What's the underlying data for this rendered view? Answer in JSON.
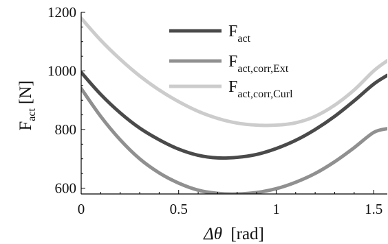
{
  "chart_data": {
    "type": "line",
    "xlabel": {
      "main": "Δθ",
      "unit": "[rad]"
    },
    "ylabel": {
      "main": "F",
      "sub": "act",
      "unit": "[N]"
    },
    "xlim": [
      0,
      1.57
    ],
    "ylim": [
      580,
      1200
    ],
    "x_ticks": [
      {
        "value": 0,
        "label": "0"
      },
      {
        "value": 0.5,
        "label": "0.5"
      },
      {
        "value": 1,
        "label": "1"
      },
      {
        "value": 1.5,
        "label": "1.5"
      }
    ],
    "y_ticks": [
      {
        "value": 600,
        "label": "600"
      },
      {
        "value": 800,
        "label": "800"
      },
      {
        "value": 1000,
        "label": "1000"
      },
      {
        "value": 1200,
        "label": "1200"
      }
    ],
    "legend_position": "top-center",
    "series": [
      {
        "name_main": "F",
        "name_sub": "act",
        "color": "#4a4a4a",
        "x": [
          0,
          0.1,
          0.2,
          0.3,
          0.4,
          0.5,
          0.6,
          0.7,
          0.8,
          0.9,
          1.0,
          1.1,
          1.2,
          1.3,
          1.4,
          1.5,
          1.57
        ],
        "y": [
          995,
          920,
          857,
          805,
          765,
          733,
          712,
          703,
          705,
          715,
          735,
          763,
          800,
          845,
          898,
          955,
          985
        ]
      },
      {
        "name_main": "F",
        "name_sub": "act,corr,Ext",
        "color": "#909090",
        "x": [
          0,
          0.1,
          0.2,
          0.3,
          0.4,
          0.5,
          0.6,
          0.7,
          0.8,
          0.9,
          1.0,
          1.1,
          1.2,
          1.3,
          1.4,
          1.5,
          1.57
        ],
        "y": [
          940,
          845,
          765,
          700,
          652,
          617,
          593,
          582,
          580,
          585,
          598,
          620,
          650,
          690,
          738,
          790,
          803
        ]
      },
      {
        "name_main": "F",
        "name_sub": "act,corr,Curl",
        "color": "#cccccc",
        "x": [
          0,
          0.1,
          0.2,
          0.3,
          0.4,
          0.5,
          0.6,
          0.7,
          0.8,
          0.9,
          1.0,
          1.1,
          1.2,
          1.3,
          1.4,
          1.5,
          1.57
        ],
        "y": [
          1180,
          1105,
          1040,
          983,
          935,
          895,
          862,
          838,
          822,
          815,
          815,
          823,
          845,
          883,
          935,
          1000,
          1035
        ]
      }
    ]
  }
}
